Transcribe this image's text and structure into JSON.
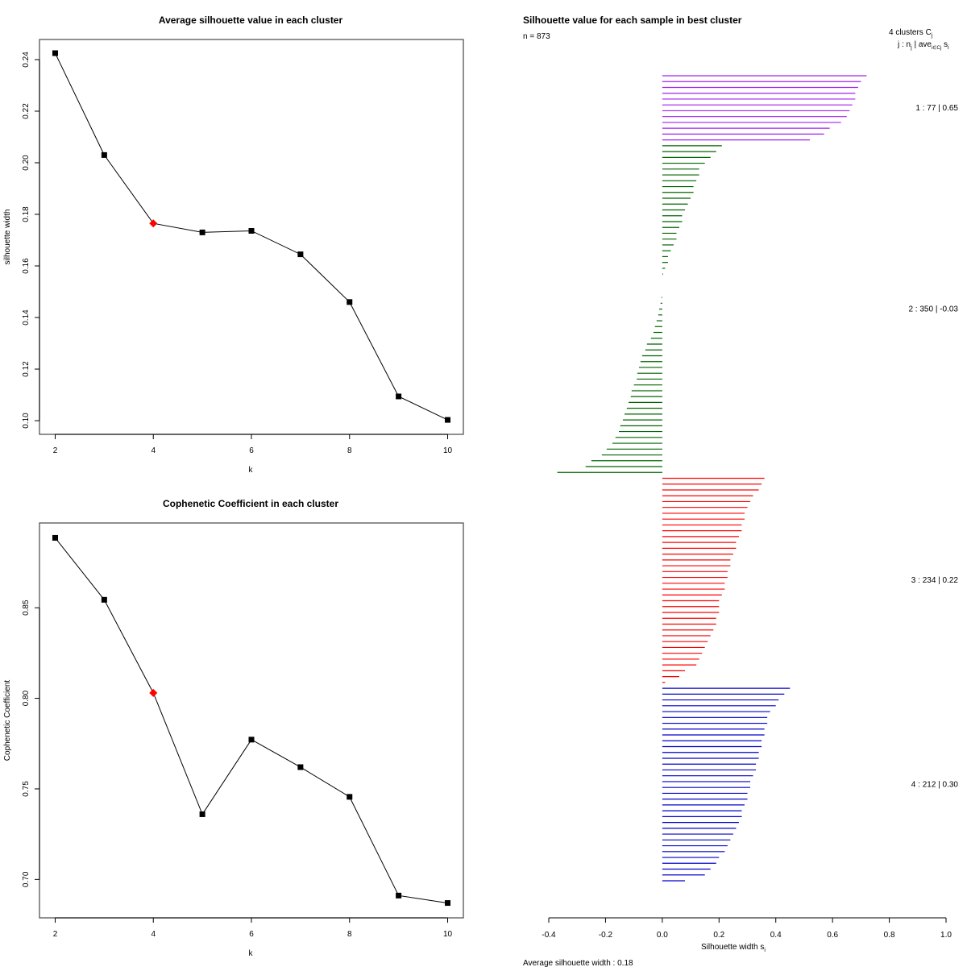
{
  "chart_data": [
    {
      "id": "silhouette-avg",
      "type": "line",
      "title": "Average silhouette value in each cluster",
      "xlabel": "k",
      "ylabel": "silhouette width",
      "x": [
        2,
        3,
        4,
        5,
        6,
        7,
        8,
        9,
        10
      ],
      "values": [
        0.2425,
        0.203,
        0.1765,
        0.173,
        0.1736,
        0.1645,
        0.146,
        0.1094,
        0.1003
      ],
      "highlight_k": 4,
      "highlight_color": "#ff0000",
      "marker_color": "#000000",
      "xticks": [
        2,
        4,
        6,
        8,
        10
      ],
      "yticks": [
        0.1,
        0.12,
        0.14,
        0.16,
        0.18,
        0.2,
        0.22,
        0.24
      ],
      "ytick_labels": [
        "0.10",
        "0.12",
        "0.14",
        "0.16",
        "0.18",
        "0.20",
        "0.22",
        "0.24"
      ],
      "xlim": [
        1.68,
        10.32
      ],
      "ylim": [
        0.0947,
        0.2478
      ]
    },
    {
      "id": "cophenetic",
      "type": "line",
      "title": "Cophenetic Coefficient in each cluster",
      "xlabel": "k",
      "ylabel": "Cophenetic Coefficient",
      "x": [
        2,
        3,
        4,
        5,
        6,
        7,
        8,
        9,
        10
      ],
      "values": [
        0.8886,
        0.8544,
        0.803,
        0.736,
        0.7772,
        0.762,
        0.7456,
        0.6911,
        0.687
      ],
      "highlight_k": 4,
      "highlight_color": "#ff0000",
      "marker_color": "#000000",
      "xticks": [
        2,
        4,
        6,
        8,
        10
      ],
      "yticks": [
        0.7,
        0.75,
        0.8,
        0.85
      ],
      "ytick_labels": [
        "0.70",
        "0.75",
        "0.80",
        "0.85"
      ],
      "xlim": [
        1.68,
        10.32
      ],
      "ylim": [
        0.6788,
        0.8968
      ]
    },
    {
      "id": "silhouette-samples",
      "type": "bar",
      "orientation": "horizontal",
      "title": "Silhouette value for each sample in best cluster",
      "n_label": "n = 873",
      "legend_header_1": "4  clusters  C",
      "legend_header_1_sub": "j",
      "legend_header_2": "j :  n",
      "legend_header_2_sub": "j",
      "legend_header_2_rest": " | ave",
      "legend_header_2_sub2": "i∈Cj",
      "legend_header_2_end": "  s",
      "legend_header_2_sub3": "i",
      "xlabel": "Silhouette width s",
      "xlabel_sub": "i",
      "footer": "Average silhouette width :  0.18",
      "xticks": [
        -0.4,
        -0.2,
        0.0,
        0.2,
        0.4,
        0.6,
        0.8,
        1.0
      ],
      "xtick_labels": [
        "-0.4",
        "-0.2",
        "0.0",
        "0.2",
        "0.4",
        "0.6",
        "0.8",
        "1.0"
      ],
      "xlim": [
        -0.4,
        1.0
      ],
      "clusters": [
        {
          "label": "1 :  77  |  0.65",
          "n": 77,
          "avg": 0.65,
          "color": "#a020f0",
          "values": [
            0.72,
            0.7,
            0.69,
            0.68,
            0.68,
            0.67,
            0.66,
            0.65,
            0.63,
            0.59,
            0.57,
            0.52
          ]
        },
        {
          "label": "2 :  350  |  -0.03",
          "n": 350,
          "avg": -0.03,
          "color": "#006400",
          "values": [
            0.21,
            0.19,
            0.17,
            0.15,
            0.13,
            0.13,
            0.12,
            0.11,
            0.11,
            0.1,
            0.09,
            0.08,
            0.07,
            0.07,
            0.06,
            0.05,
            0.05,
            0.04,
            0.03,
            0.02,
            0.02,
            0.01,
            0.003,
            0.0,
            0.0,
            0.0,
            -0.003,
            -0.006,
            -0.011,
            -0.014,
            -0.02,
            -0.026,
            -0.031,
            -0.04,
            -0.054,
            -0.06,
            -0.071,
            -0.077,
            -0.082,
            -0.088,
            -0.09,
            -0.1,
            -0.108,
            -0.111,
            -0.119,
            -0.125,
            -0.133,
            -0.139,
            -0.148,
            -0.153,
            -0.165,
            -0.176,
            -0.196,
            -0.213,
            -0.25,
            -0.27,
            -0.37
          ]
        },
        {
          "label": "3 :  234  |  0.22",
          "n": 234,
          "avg": 0.22,
          "color": "#ff0000",
          "values": [
            0.36,
            0.35,
            0.34,
            0.32,
            0.31,
            0.3,
            0.29,
            0.29,
            0.28,
            0.28,
            0.27,
            0.26,
            0.26,
            0.25,
            0.24,
            0.24,
            0.23,
            0.23,
            0.22,
            0.22,
            0.21,
            0.2,
            0.2,
            0.2,
            0.19,
            0.19,
            0.18,
            0.17,
            0.16,
            0.15,
            0.14,
            0.13,
            0.12,
            0.08,
            0.06,
            0.01
          ]
        },
        {
          "label": "4 :  212  |  0.30",
          "n": 212,
          "avg": 0.3,
          "color": "#0000cd",
          "values": [
            0.45,
            0.43,
            0.41,
            0.4,
            0.38,
            0.37,
            0.37,
            0.36,
            0.36,
            0.35,
            0.35,
            0.34,
            0.34,
            0.33,
            0.33,
            0.32,
            0.31,
            0.31,
            0.3,
            0.3,
            0.29,
            0.28,
            0.28,
            0.27,
            0.26,
            0.25,
            0.24,
            0.23,
            0.22,
            0.2,
            0.19,
            0.17,
            0.15,
            0.08
          ]
        }
      ]
    }
  ]
}
